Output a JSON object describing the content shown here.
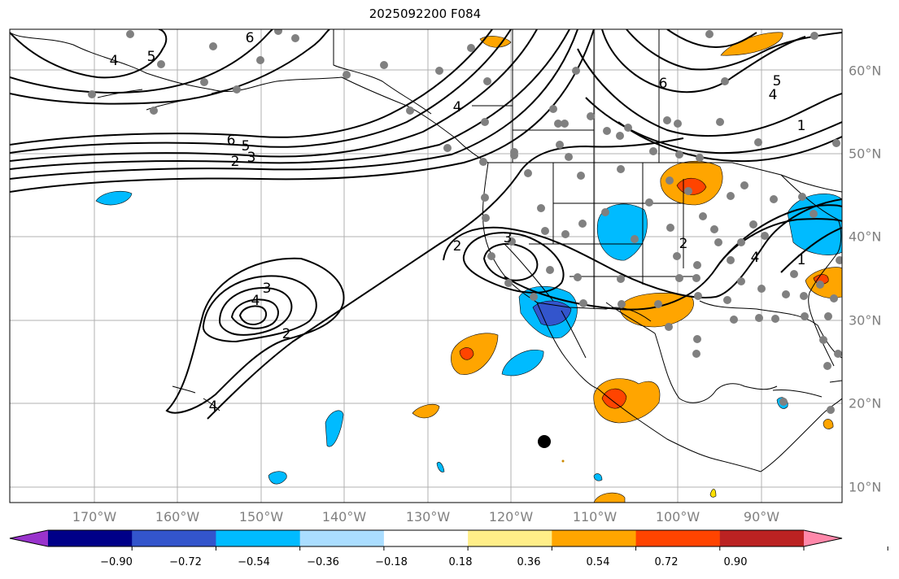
{
  "title": "2025092200 F084",
  "lon_labels": [
    "170°W",
    "160°W",
    "150°W",
    "140°W",
    "130°W",
    "120°W",
    "110°W",
    "100°W",
    "90°W"
  ],
  "lat_labels": [
    "60°N",
    "50°N",
    "40°N",
    "30°N",
    "20°N",
    "10°N"
  ],
  "contour_labels": {
    "pac_high_3": "3",
    "pac_high_4": "4",
    "pac_high_2": "2",
    "jet_6": "6",
    "jet_5": "5",
    "jet_3": "3",
    "jet_2": "2",
    "nw_6": "6",
    "nw_5": "5",
    "nw_4": "4",
    "ak_4": "4",
    "ca_2": "2",
    "ca_3": "3",
    "ne_6": "6",
    "ne_5": "5",
    "ne_4": "4",
    "ne_1": "1",
    "se_2": "2",
    "se_4": "4",
    "se_1": "1",
    "hi_4": "4"
  },
  "colorbar": {
    "labels": [
      "−0.90",
      "−0.72",
      "−0.54",
      "−0.36",
      "−0.18",
      "0.18",
      "0.36",
      "0.54",
      "0.72",
      "0.90"
    ],
    "colors": [
      "#9933cc",
      "#000088",
      "#3355cc",
      "#00bbff",
      "#aaddff",
      "#ffffff",
      "#ffee88",
      "#ffa500",
      "#ff4400",
      "#bb2222",
      "#ff88aa"
    ]
  },
  "fill_colors": {
    "neg_light": "#00bbff",
    "neg_mid": "#3355cc",
    "pos_light": "#ffa500",
    "pos_mid": "#ff4400"
  }
}
